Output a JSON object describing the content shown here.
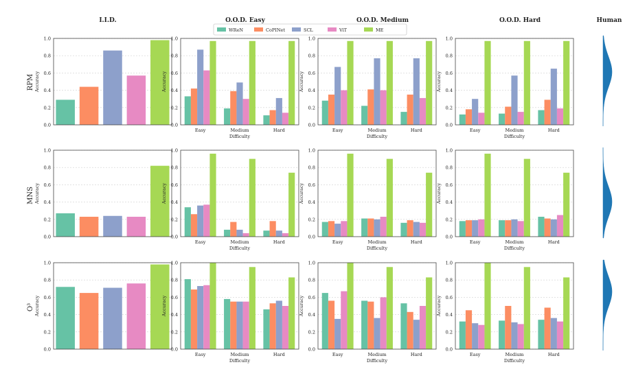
{
  "column_titles": [
    "I.I.D.",
    "O.O.D. Easy",
    "O.O.D. Medium",
    "O.O.D. Hard",
    "Human"
  ],
  "row_labels": [
    "RPM",
    "MNS",
    "O³"
  ],
  "legend": [
    {
      "name": "WReN",
      "color": "#66c2a5"
    },
    {
      "name": "CoPINet",
      "color": "#fc8d62"
    },
    {
      "name": "SCL",
      "color": "#8da0cb"
    },
    {
      "name": "ViT",
      "color": "#e78ac3"
    },
    {
      "name": "ME",
      "color": "#a6d854"
    }
  ],
  "human_color": "#1f77b4",
  "chart_data": [
    {
      "type": "bar",
      "row": "RPM",
      "column": "I.I.D.",
      "ylabel": "Accuracy",
      "ylim": [
        0,
        1.0
      ],
      "yticks": [
        "0.0",
        "0.2",
        "0.4",
        "0.6",
        "0.8",
        "1.0"
      ],
      "grid": "y",
      "series": [
        {
          "name": "WReN",
          "values": [
            0.29
          ]
        },
        {
          "name": "CoPINet",
          "values": [
            0.44
          ]
        },
        {
          "name": "SCL",
          "values": [
            0.86
          ]
        },
        {
          "name": "ViT",
          "values": [
            0.57
          ]
        },
        {
          "name": "ME",
          "values": [
            0.98
          ]
        }
      ]
    },
    {
      "type": "bar",
      "row": "RPM",
      "column": "O.O.D. Easy",
      "ylabel": "Accuracy",
      "xlabel": "Difficulty",
      "ylim": [
        0,
        1.0
      ],
      "yticks": [
        "0.0",
        "0.2",
        "0.4",
        "0.6",
        "0.8",
        "1.0"
      ],
      "grid": "y",
      "categories": [
        "Easy",
        "Medium",
        "Hard"
      ],
      "series": [
        {
          "name": "WReN",
          "values": [
            0.33,
            0.19,
            0.11
          ]
        },
        {
          "name": "CoPINet",
          "values": [
            0.42,
            0.39,
            0.17
          ]
        },
        {
          "name": "SCL",
          "values": [
            0.87,
            0.49,
            0.31
          ]
        },
        {
          "name": "ViT",
          "values": [
            0.63,
            0.3,
            0.14
          ]
        },
        {
          "name": "ME",
          "values": [
            0.97,
            0.97,
            0.97
          ]
        }
      ]
    },
    {
      "type": "bar",
      "row": "RPM",
      "column": "O.O.D. Medium",
      "ylabel": "Accuracy",
      "xlabel": "Difficulty",
      "ylim": [
        0,
        1.0
      ],
      "yticks": [
        "0.0",
        "0.2",
        "0.4",
        "0.6",
        "0.8",
        "1.0"
      ],
      "grid": "y",
      "categories": [
        "Easy",
        "Medium",
        "Hard"
      ],
      "series": [
        {
          "name": "WReN",
          "values": [
            0.28,
            0.22,
            0.15
          ]
        },
        {
          "name": "CoPINet",
          "values": [
            0.35,
            0.41,
            0.35
          ]
        },
        {
          "name": "SCL",
          "values": [
            0.67,
            0.77,
            0.77
          ]
        },
        {
          "name": "ViT",
          "values": [
            0.4,
            0.4,
            0.31
          ]
        },
        {
          "name": "ME",
          "values": [
            0.97,
            0.97,
            0.97
          ]
        }
      ]
    },
    {
      "type": "bar",
      "row": "RPM",
      "column": "O.O.D. Hard",
      "ylabel": "Accuracy",
      "xlabel": "Difficulty",
      "ylim": [
        0,
        1.0
      ],
      "yticks": [
        "0.0",
        "0.2",
        "0.4",
        "0.6",
        "0.8",
        "1.0"
      ],
      "grid": "y",
      "categories": [
        "Easy",
        "Medium",
        "Hard"
      ],
      "series": [
        {
          "name": "WReN",
          "values": [
            0.12,
            0.13,
            0.17
          ]
        },
        {
          "name": "CoPINet",
          "values": [
            0.18,
            0.21,
            0.29
          ]
        },
        {
          "name": "SCL",
          "values": [
            0.3,
            0.57,
            0.65
          ]
        },
        {
          "name": "ViT",
          "values": [
            0.14,
            0.15,
            0.19
          ]
        },
        {
          "name": "ME",
          "values": [
            0.97,
            0.97,
            0.97
          ]
        }
      ]
    },
    {
      "type": "bar",
      "row": "MNS",
      "column": "I.I.D.",
      "ylabel": "Accuracy",
      "ylim": [
        0,
        1.0
      ],
      "yticks": [
        "0.0",
        "0.2",
        "0.4",
        "0.6",
        "0.8",
        "1.0"
      ],
      "grid": "y",
      "series": [
        {
          "name": "WReN",
          "values": [
            0.27
          ]
        },
        {
          "name": "CoPINet",
          "values": [
            0.23
          ]
        },
        {
          "name": "SCL",
          "values": [
            0.24
          ]
        },
        {
          "name": "ViT",
          "values": [
            0.23
          ]
        },
        {
          "name": "ME",
          "values": [
            0.82
          ]
        }
      ]
    },
    {
      "type": "bar",
      "row": "MNS",
      "column": "O.O.D. Easy",
      "ylabel": "Accuracy",
      "xlabel": "Difficulty",
      "ylim": [
        0,
        1.0
      ],
      "yticks": [
        "0.0",
        "0.2",
        "0.4",
        "0.6",
        "0.8",
        "1.0"
      ],
      "grid": "y",
      "categories": [
        "Easy",
        "Medium",
        "Hard"
      ],
      "series": [
        {
          "name": "WReN",
          "values": [
            0.34,
            0.08,
            0.07
          ]
        },
        {
          "name": "CoPINet",
          "values": [
            0.26,
            0.17,
            0.18
          ]
        },
        {
          "name": "SCL",
          "values": [
            0.36,
            0.08,
            0.07
          ]
        },
        {
          "name": "ViT",
          "values": [
            0.37,
            0.04,
            0.04
          ]
        },
        {
          "name": "ME",
          "values": [
            0.96,
            0.9,
            0.74
          ]
        }
      ]
    },
    {
      "type": "bar",
      "row": "MNS",
      "column": "O.O.D. Medium",
      "ylabel": "Accuracy",
      "xlabel": "Difficulty",
      "ylim": [
        0,
        1.0
      ],
      "yticks": [
        "0.0",
        "0.2",
        "0.4",
        "0.6",
        "0.8",
        "1.0"
      ],
      "grid": "y",
      "categories": [
        "Easy",
        "Medium",
        "Hard"
      ],
      "series": [
        {
          "name": "WReN",
          "values": [
            0.17,
            0.21,
            0.16
          ]
        },
        {
          "name": "CoPINet",
          "values": [
            0.18,
            0.21,
            0.19
          ]
        },
        {
          "name": "SCL",
          "values": [
            0.15,
            0.2,
            0.17
          ]
        },
        {
          "name": "ViT",
          "values": [
            0.18,
            0.23,
            0.16
          ]
        },
        {
          "name": "ME",
          "values": [
            0.96,
            0.9,
            0.74
          ]
        }
      ]
    },
    {
      "type": "bar",
      "row": "MNS",
      "column": "O.O.D. Hard",
      "ylabel": "Accuracy",
      "xlabel": "Difficulty",
      "ylim": [
        0,
        1.0
      ],
      "yticks": [
        "0.0",
        "0.2",
        "0.4",
        "0.6",
        "0.8",
        "1.0"
      ],
      "grid": "y",
      "categories": [
        "Easy",
        "Medium",
        "Hard"
      ],
      "series": [
        {
          "name": "WReN",
          "values": [
            0.18,
            0.19,
            0.23
          ]
        },
        {
          "name": "CoPINet",
          "values": [
            0.19,
            0.19,
            0.21
          ]
        },
        {
          "name": "SCL",
          "values": [
            0.19,
            0.2,
            0.2
          ]
        },
        {
          "name": "ViT",
          "values": [
            0.2,
            0.18,
            0.25
          ]
        },
        {
          "name": "ME",
          "values": [
            0.96,
            0.9,
            0.74
          ]
        }
      ]
    },
    {
      "type": "bar",
      "row": "O³",
      "column": "I.I.D.",
      "ylabel": "Accuracy",
      "ylim": [
        0,
        1.0
      ],
      "yticks": [
        "0.0",
        "0.2",
        "0.4",
        "0.6",
        "0.8",
        "1.0"
      ],
      "grid": "y",
      "series": [
        {
          "name": "WReN",
          "values": [
            0.72
          ]
        },
        {
          "name": "CoPINet",
          "values": [
            0.65
          ]
        },
        {
          "name": "SCL",
          "values": [
            0.71
          ]
        },
        {
          "name": "ViT",
          "values": [
            0.76
          ]
        },
        {
          "name": "ME",
          "values": [
            0.98
          ]
        }
      ]
    },
    {
      "type": "bar",
      "row": "O³",
      "column": "O.O.D. Easy",
      "ylabel": "Accuracy",
      "xlabel": "Difficulty",
      "ylim": [
        0,
        1.0
      ],
      "yticks": [
        "0.0",
        "0.2",
        "0.4",
        "0.6",
        "0.8",
        "1.0"
      ],
      "grid": "y",
      "categories": [
        "Easy",
        "Medium",
        "Hard"
      ],
      "series": [
        {
          "name": "WReN",
          "values": [
            0.81,
            0.58,
            0.46
          ]
        },
        {
          "name": "CoPINet",
          "values": [
            0.69,
            0.55,
            0.53
          ]
        },
        {
          "name": "SCL",
          "values": [
            0.73,
            0.55,
            0.56
          ]
        },
        {
          "name": "ViT",
          "values": [
            0.74,
            0.55,
            0.5
          ]
        },
        {
          "name": "ME",
          "values": [
            1.0,
            0.95,
            0.83
          ]
        }
      ]
    },
    {
      "type": "bar",
      "row": "O³",
      "column": "O.O.D. Medium",
      "ylabel": "Accuracy",
      "xlabel": "Difficulty",
      "ylim": [
        0,
        1.0
      ],
      "yticks": [
        "0.0",
        "0.2",
        "0.4",
        "0.6",
        "0.8",
        "1.0"
      ],
      "grid": "y",
      "categories": [
        "Easy",
        "Medium",
        "Hard"
      ],
      "series": [
        {
          "name": "WReN",
          "values": [
            0.65,
            0.56,
            0.53
          ]
        },
        {
          "name": "CoPINet",
          "values": [
            0.56,
            0.55,
            0.43
          ]
        },
        {
          "name": "SCL",
          "values": [
            0.35,
            0.36,
            0.34
          ]
        },
        {
          "name": "ViT",
          "values": [
            0.67,
            0.6,
            0.5
          ]
        },
        {
          "name": "ME",
          "values": [
            1.0,
            0.95,
            0.83
          ]
        }
      ]
    },
    {
      "type": "bar",
      "row": "O³",
      "column": "O.O.D. Hard",
      "ylabel": "Accuracy",
      "xlabel": "Difficulty",
      "ylim": [
        0,
        1.0
      ],
      "yticks": [
        "0.0",
        "0.2",
        "0.4",
        "0.6",
        "0.8",
        "1.0"
      ],
      "grid": "y",
      "categories": [
        "Easy",
        "Medium",
        "Hard"
      ],
      "series": [
        {
          "name": "WReN",
          "values": [
            0.32,
            0.33,
            0.34
          ]
        },
        {
          "name": "CoPINet",
          "values": [
            0.45,
            0.5,
            0.48
          ]
        },
        {
          "name": "SCL",
          "values": [
            0.3,
            0.31,
            0.36
          ]
        },
        {
          "name": "ViT",
          "values": [
            0.28,
            0.29,
            0.32
          ]
        },
        {
          "name": "ME",
          "values": [
            1.0,
            0.95,
            0.83
          ]
        }
      ]
    },
    {
      "type": "area",
      "row": "RPM",
      "column": "Human",
      "series": [
        {
          "name": "Human",
          "density": "unimodal, peak accuracy ≈ 0.6"
        }
      ]
    },
    {
      "type": "area",
      "row": "MNS",
      "column": "Human",
      "series": [
        {
          "name": "Human",
          "density": "unimodal, peak accuracy ≈ 0.4"
        }
      ]
    },
    {
      "type": "area",
      "row": "O³",
      "column": "Human",
      "series": [
        {
          "name": "Human",
          "density": "unimodal, peak accuracy ≈ 0.65"
        }
      ]
    }
  ]
}
